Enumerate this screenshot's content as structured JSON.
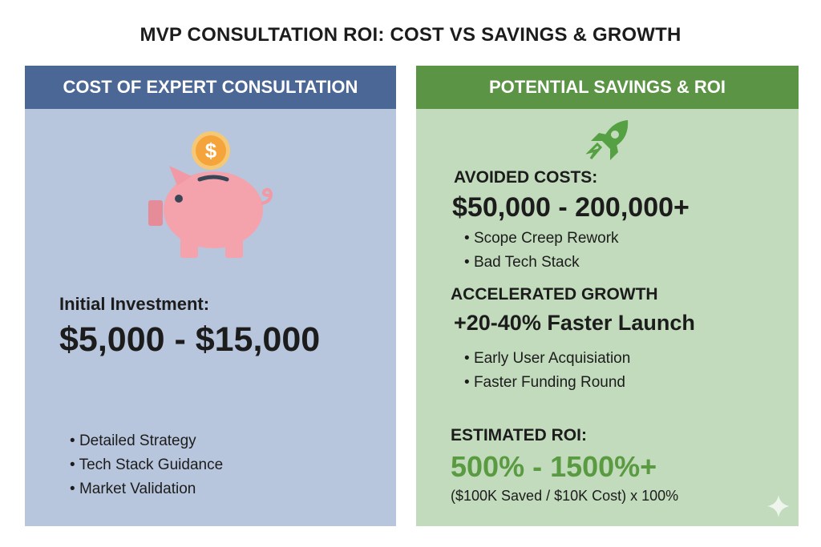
{
  "title": "MVP CONSULTATION ROI: COST VS SAVINGS & GROWTH",
  "colors": {
    "left_header": "#4b6796",
    "left_bg": "#b7c6dc",
    "right_header": "#5a9444",
    "right_bg": "#c1dbbc",
    "roi_green": "#5a9a40"
  },
  "left": {
    "header": "COST OF EXPERT CONSULTATION",
    "icon": "piggy-bank-coin-icon",
    "label": "Initial Investment:",
    "amount": "$5,000 - $15,000",
    "bullets": [
      "Detailed Strategy",
      "Tech Stack Guidance",
      "Market Validation"
    ]
  },
  "right": {
    "header": "POTENTIAL SAVINGS & ROI",
    "icon": "rocket-icon",
    "avoided_label": "AVOIDED COSTS:",
    "avoided_amount": "$50,000 - 200,000+",
    "avoided_bullets": [
      "Scope Creep Rework",
      "Bad Tech Stack"
    ],
    "growth_label": "ACCELERATED GROWTH",
    "growth_value": "+20-40% Faster Launch",
    "growth_bullets": [
      "Early User Acquisiation",
      "Faster Funding Round"
    ],
    "roi_label": "ESTIMATED ROI:",
    "roi_value": "500% - 1500%+",
    "roi_formula": "($100K Saved / $10K Cost) x 100%"
  }
}
